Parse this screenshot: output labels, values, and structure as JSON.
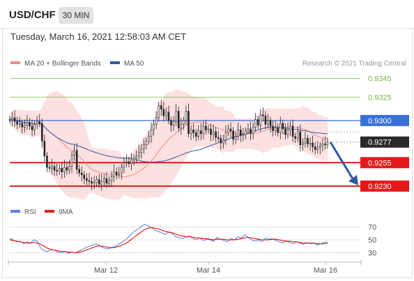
{
  "header": {
    "symbol": "USD/CHF",
    "timeframe": "30 MIN"
  },
  "datetime": "Tuesday, March 16, 2021 12:58:03 AM CET",
  "legend": [
    {
      "label": "MA 20 + Bollinger Bands",
      "color": "#f08a8a"
    },
    {
      "label": "MA 50",
      "color": "#2c5aa0"
    }
  ],
  "rsi_legend": [
    {
      "label": "RSI",
      "color": "#5b7fdc"
    },
    {
      "label": "9MA",
      "color": "#e02020"
    }
  ],
  "credit": "Research © 2021 Trading Central",
  "colors": {
    "support": "#e31a1a",
    "pivot": "#3a6fd8",
    "target": "#7cb342",
    "candle": "#222222",
    "arrow": "#2c5aa0"
  },
  "chart_data": {
    "type": "candlestick",
    "ylim": [
      0.9218,
      0.9352
    ],
    "x_ticks": [
      "Mar 12",
      "Mar 14",
      "Mar 16"
    ],
    "levels": [
      {
        "value": 0.9345,
        "label": "0.9345",
        "kind": "target"
      },
      {
        "value": 0.9325,
        "label": "0.9325",
        "kind": "target"
      },
      {
        "value": 0.93,
        "label": "0.9300",
        "kind": "pivot"
      },
      {
        "value": 0.9277,
        "label": "0.9277",
        "kind": "last"
      },
      {
        "value": 0.9255,
        "label": "0.9255",
        "kind": "support"
      },
      {
        "value": 0.923,
        "label": "0.9230",
        "kind": "support"
      }
    ],
    "arrow": {
      "from": 0.9277,
      "to": 0.9233
    },
    "price": [
      0.9301,
      0.9303,
      0.9299,
      0.9296,
      0.9297,
      0.9293,
      0.9295,
      0.9298,
      0.9294,
      0.929,
      0.9296,
      0.9299,
      0.9297,
      0.9278,
      0.9262,
      0.925,
      0.9249,
      0.9251,
      0.9247,
      0.9246,
      0.9249,
      0.9245,
      0.925,
      0.9247,
      0.9251,
      0.9263,
      0.9268,
      0.9248,
      0.9244,
      0.9242,
      0.9238,
      0.9236,
      0.9235,
      0.9233,
      0.9234,
      0.9237,
      0.9232,
      0.9235,
      0.9238,
      0.9233,
      0.9236,
      0.924,
      0.9245,
      0.9242,
      0.9244,
      0.925,
      0.9255,
      0.9256,
      0.9254,
      0.9258,
      0.926,
      0.9262,
      0.9266,
      0.927,
      0.9274,
      0.9278,
      0.9283,
      0.929,
      0.9296,
      0.9303,
      0.9316,
      0.9312,
      0.9305,
      0.9309,
      0.93,
      0.9295,
      0.9299,
      0.931,
      0.9292,
      0.9296,
      0.93,
      0.931,
      0.9286,
      0.929,
      0.9287,
      0.9283,
      0.9289,
      0.9286,
      0.9294,
      0.929,
      0.9291,
      0.9285,
      0.9288,
      0.9282,
      0.9281,
      0.9276,
      0.9279,
      0.9287,
      0.9291,
      0.9289,
      0.928,
      0.9283,
      0.929,
      0.9284,
      0.9285,
      0.9289,
      0.9291,
      0.9286,
      0.9293,
      0.9301,
      0.9295,
      0.9306,
      0.9305,
      0.9296,
      0.93,
      0.9294,
      0.9289,
      0.9292,
      0.9287,
      0.9297,
      0.9291,
      0.9285,
      0.929,
      0.9294,
      0.9283,
      0.9281,
      0.9288,
      0.9274,
      0.9276,
      0.9281,
      0.9275,
      0.9276,
      0.9272,
      0.9269,
      0.9271,
      0.9273,
      0.9275,
      0.9274,
      0.9277
    ],
    "rsi": {
      "levels": [
        70,
        50,
        30
      ],
      "ylim": [
        22,
        78
      ],
      "rsi": [
        52,
        50,
        47,
        48,
        44,
        47,
        45,
        50,
        48,
        37,
        33,
        32,
        35,
        34,
        31,
        30,
        32,
        29,
        31,
        30,
        33,
        35,
        38,
        40,
        42,
        44,
        41,
        38,
        36,
        37,
        39,
        41,
        45,
        48,
        52,
        58,
        63,
        66,
        70,
        74,
        72,
        69,
        65,
        63,
        61,
        58,
        62,
        60,
        55,
        53,
        52,
        54,
        56,
        52,
        50,
        53,
        49,
        51,
        50,
        48,
        54,
        51,
        49,
        47,
        52,
        50,
        55,
        53,
        58,
        54,
        50,
        48,
        50,
        47,
        53,
        51,
        52,
        49,
        47,
        45,
        48,
        46,
        44,
        47,
        45,
        43,
        46,
        44,
        45,
        42,
        44,
        46,
        47
      ],
      "ma": [
        50,
        49,
        48,
        47,
        46,
        45,
        45,
        46,
        45,
        43,
        40,
        37,
        35,
        34,
        33,
        32,
        32,
        31,
        31,
        30,
        31,
        32,
        34,
        36,
        38,
        40,
        41,
        40,
        39,
        38,
        38,
        39,
        41,
        43,
        46,
        50,
        54,
        58,
        62,
        66,
        68,
        69,
        68,
        67,
        65,
        63,
        62,
        61,
        59,
        57,
        56,
        55,
        55,
        54,
        53,
        53,
        52,
        52,
        51,
        50,
        51,
        51,
        51,
        50,
        50,
        50,
        51,
        52,
        53,
        54,
        53,
        52,
        51,
        50,
        50,
        50,
        51,
        51,
        50,
        49,
        48,
        48,
        47,
        47,
        46,
        45,
        45,
        45,
        45,
        44,
        44,
        44,
        45
      ]
    }
  }
}
